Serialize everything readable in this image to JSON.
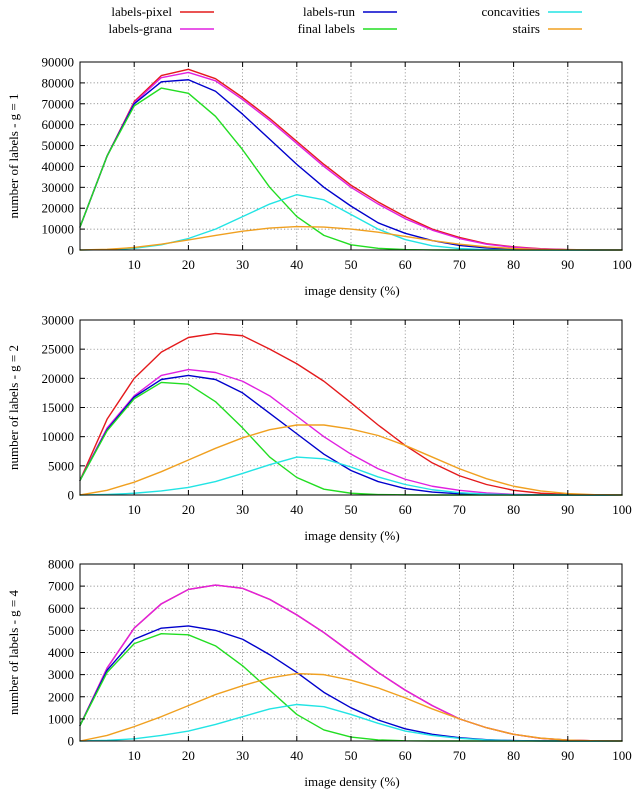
{
  "legend": {
    "columns": [
      [
        "labels-pixel",
        "labels-grana"
      ],
      [
        "labels-run",
        "final labels"
      ],
      [
        "concavities",
        "stairs"
      ]
    ]
  },
  "series_colors": {
    "labels-pixel": "#e41a1c",
    "labels-grana": "#e020e0",
    "labels-run": "#0000cc",
    "final labels": "#22dd22",
    "concavities": "#22e4e4",
    "stairs": "#f0a020"
  },
  "chart_data": [
    {
      "type": "line",
      "xlabel": "image density (%)",
      "ylabel": "number of labels - g = 1",
      "xlim": [
        0,
        100
      ],
      "ylim": [
        0,
        90000
      ],
      "xticks": [
        10,
        20,
        30,
        40,
        50,
        60,
        70,
        80,
        90,
        100
      ],
      "yticks": [
        0,
        10000,
        20000,
        30000,
        40000,
        50000,
        60000,
        70000,
        80000,
        90000
      ],
      "grid": true,
      "x": [
        0,
        5,
        10,
        15,
        20,
        25,
        30,
        35,
        40,
        45,
        50,
        55,
        60,
        65,
        70,
        75,
        80,
        85,
        90,
        95,
        100
      ],
      "series": [
        {
          "name": "labels-pixel",
          "values": [
            11000,
            45000,
            71000,
            83500,
            86500,
            82000,
            73000,
            63000,
            52000,
            41000,
            31000,
            23000,
            16000,
            10000,
            6000,
            3000,
            1500,
            600,
            200,
            50,
            0
          ]
        },
        {
          "name": "labels-grana",
          "values": [
            11000,
            45000,
            70500,
            82500,
            85000,
            81000,
            72000,
            62000,
            51000,
            40000,
            30000,
            22000,
            15000,
            9500,
            5500,
            2800,
            1300,
            500,
            150,
            40,
            0
          ]
        },
        {
          "name": "labels-run",
          "values": [
            11000,
            45000,
            70000,
            80500,
            81500,
            76000,
            65000,
            53000,
            41000,
            30000,
            21000,
            13000,
            8000,
            4500,
            2200,
            1000,
            400,
            100,
            30,
            0,
            0
          ]
        },
        {
          "name": "final labels",
          "values": [
            11000,
            45000,
            69000,
            77500,
            75000,
            64000,
            48000,
            30000,
            16000,
            7000,
            2500,
            800,
            200,
            50,
            0,
            0,
            0,
            0,
            0,
            0,
            0
          ]
        },
        {
          "name": "concavities",
          "values": [
            0,
            200,
            800,
            2500,
            5500,
            10000,
            16000,
            22000,
            26500,
            24000,
            17000,
            10000,
            5000,
            2000,
            700,
            200,
            50,
            0,
            0,
            0,
            0
          ]
        },
        {
          "name": "stairs",
          "values": [
            0,
            300,
            1200,
            2800,
            4800,
            7000,
            9000,
            10500,
            11200,
            11000,
            10000,
            8500,
            6500,
            4500,
            2800,
            1500,
            700,
            250,
            80,
            20,
            0
          ]
        }
      ]
    },
    {
      "type": "line",
      "xlabel": "image density (%)",
      "ylabel": "number of labels - g = 2",
      "xlim": [
        0,
        100
      ],
      "ylim": [
        0,
        30000
      ],
      "xticks": [
        10,
        20,
        30,
        40,
        50,
        60,
        70,
        80,
        90,
        100
      ],
      "yticks": [
        0,
        5000,
        10000,
        15000,
        20000,
        25000,
        30000
      ],
      "grid": true,
      "x": [
        0,
        5,
        10,
        15,
        20,
        25,
        30,
        35,
        40,
        45,
        50,
        55,
        60,
        65,
        70,
        75,
        80,
        85,
        90,
        95,
        100
      ],
      "series": [
        {
          "name": "labels-pixel",
          "values": [
            2500,
            13000,
            20000,
            24500,
            27000,
            27700,
            27300,
            25000,
            22500,
            19500,
            15800,
            12000,
            8500,
            5500,
            3300,
            1800,
            800,
            300,
            100,
            20,
            0
          ]
        },
        {
          "name": "labels-grana",
          "values": [
            2500,
            11500,
            17000,
            20500,
            21500,
            21000,
            19500,
            17000,
            13500,
            10000,
            7000,
            4500,
            2700,
            1500,
            800,
            350,
            120,
            40,
            10,
            0,
            0
          ]
        },
        {
          "name": "labels-run",
          "values": [
            2500,
            11200,
            16800,
            19800,
            20500,
            19800,
            17500,
            14000,
            10500,
            7000,
            4200,
            2300,
            1100,
            500,
            200,
            70,
            20,
            5,
            0,
            0,
            0
          ]
        },
        {
          "name": "final labels",
          "values": [
            2500,
            11000,
            16500,
            19300,
            19000,
            16000,
            11500,
            6500,
            3000,
            1000,
            300,
            80,
            20,
            0,
            0,
            0,
            0,
            0,
            0,
            0,
            0
          ]
        },
        {
          "name": "concavities",
          "values": [
            0,
            100,
            300,
            700,
            1300,
            2300,
            3700,
            5200,
            6500,
            6200,
            4800,
            3100,
            1800,
            900,
            400,
            150,
            50,
            10,
            0,
            0,
            0
          ]
        },
        {
          "name": "stairs",
          "values": [
            0,
            800,
            2200,
            4000,
            6000,
            8000,
            9800,
            11200,
            12000,
            12000,
            11300,
            10200,
            8500,
            6500,
            4500,
            2800,
            1500,
            700,
            250,
            60,
            0
          ]
        }
      ]
    },
    {
      "type": "line",
      "xlabel": "image density (%)",
      "ylabel": "number of labels - g = 4",
      "xlim": [
        0,
        100
      ],
      "ylim": [
        0,
        8000
      ],
      "xticks": [
        10,
        20,
        30,
        40,
        50,
        60,
        70,
        80,
        90,
        100
      ],
      "yticks": [
        0,
        1000,
        2000,
        3000,
        4000,
        5000,
        6000,
        7000,
        8000
      ],
      "grid": true,
      "x": [
        0,
        5,
        10,
        15,
        20,
        25,
        30,
        35,
        40,
        45,
        50,
        55,
        60,
        65,
        70,
        75,
        80,
        85,
        90,
        95,
        100
      ],
      "series": [
        {
          "name": "labels-pixel",
          "values": [
            700,
            3300,
            5100,
            6200,
            6850,
            7050,
            6900,
            6400,
            5700,
            4900,
            4000,
            3100,
            2300,
            1600,
            1000,
            600,
            300,
            120,
            40,
            10,
            0
          ]
        },
        {
          "name": "labels-grana",
          "values": [
            700,
            3300,
            5100,
            6200,
            6850,
            7050,
            6900,
            6400,
            5700,
            4900,
            4000,
            3100,
            2300,
            1600,
            1000,
            600,
            300,
            120,
            40,
            10,
            0
          ]
        },
        {
          "name": "labels-run",
          "values": [
            700,
            3200,
            4600,
            5100,
            5200,
            5000,
            4600,
            3900,
            3100,
            2200,
            1500,
            950,
            550,
            300,
            150,
            60,
            20,
            5,
            0,
            0,
            0
          ]
        },
        {
          "name": "final labels",
          "values": [
            700,
            3100,
            4400,
            4850,
            4800,
            4300,
            3400,
            2300,
            1200,
            500,
            180,
            50,
            10,
            0,
            0,
            0,
            0,
            0,
            0,
            0,
            0
          ]
        },
        {
          "name": "concavities",
          "values": [
            0,
            30,
            100,
            250,
            450,
            750,
            1100,
            1450,
            1650,
            1550,
            1200,
            800,
            450,
            250,
            120,
            50,
            15,
            5,
            0,
            0,
            0
          ]
        },
        {
          "name": "stairs",
          "values": [
            0,
            250,
            650,
            1100,
            1600,
            2100,
            2500,
            2850,
            3050,
            3000,
            2750,
            2400,
            1950,
            1450,
            1000,
            600,
            300,
            130,
            40,
            10,
            0
          ]
        }
      ]
    }
  ]
}
